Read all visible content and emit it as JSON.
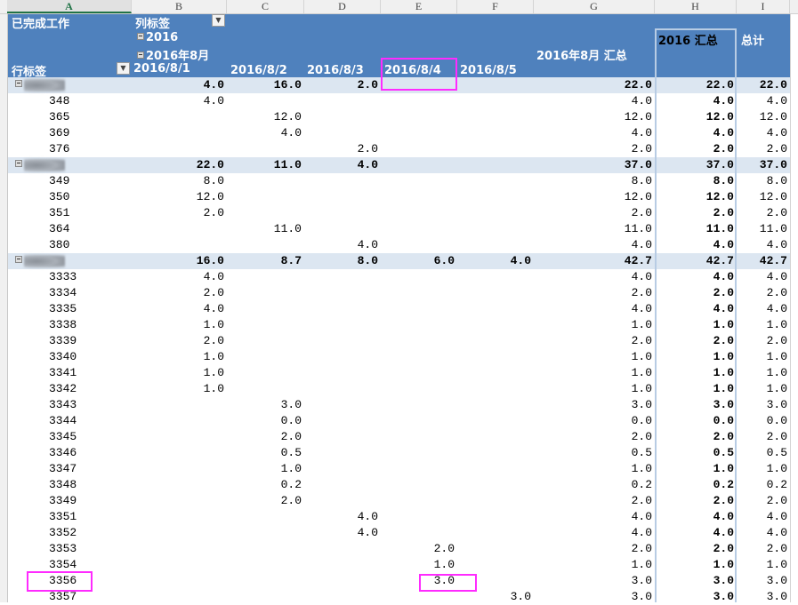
{
  "column_headers": [
    "A",
    "B",
    "C",
    "D",
    "E",
    "F",
    "G",
    "H",
    "I"
  ],
  "selected_column": "A",
  "pivot": {
    "value_field": "已完成工作",
    "column_labels": "列标签",
    "row_labels": "行标签",
    "year": "2016",
    "month": "2016年8月",
    "dates": [
      "2016/8/1",
      "2016/8/2",
      "2016/8/3",
      "2016/8/4",
      "2016/8/5"
    ],
    "month_total": "2016年8月 汇总",
    "year_total": "2016 汇总",
    "grand_total": "总计"
  },
  "colors": {
    "header_bg": "#4F81BD",
    "group_row_bg": "#DCE6F1",
    "highlight_border": "#FF2BFF",
    "selection_border": "#B8CCE4"
  },
  "rows": [
    {
      "type": "group",
      "label": "",
      "values": [
        "4.0",
        "16.0",
        "2.0",
        "",
        "",
        "22.0",
        "22.0",
        "22.0"
      ]
    },
    {
      "type": "item",
      "label": "348",
      "values": [
        "4.0",
        "",
        "",
        "",
        "",
        "4.0",
        "4.0",
        "4.0"
      ]
    },
    {
      "type": "item",
      "label": "365",
      "values": [
        "",
        "12.0",
        "",
        "",
        "",
        "12.0",
        "12.0",
        "12.0"
      ]
    },
    {
      "type": "item",
      "label": "369",
      "values": [
        "",
        "4.0",
        "",
        "",
        "",
        "4.0",
        "4.0",
        "4.0"
      ]
    },
    {
      "type": "item",
      "label": "376",
      "values": [
        "",
        "",
        "2.0",
        "",
        "",
        "2.0",
        "2.0",
        "2.0"
      ]
    },
    {
      "type": "group",
      "label": "",
      "values": [
        "22.0",
        "11.0",
        "4.0",
        "",
        "",
        "37.0",
        "37.0",
        "37.0"
      ]
    },
    {
      "type": "item",
      "label": "349",
      "values": [
        "8.0",
        "",
        "",
        "",
        "",
        "8.0",
        "8.0",
        "8.0"
      ]
    },
    {
      "type": "item",
      "label": "350",
      "values": [
        "12.0",
        "",
        "",
        "",
        "",
        "12.0",
        "12.0",
        "12.0"
      ]
    },
    {
      "type": "item",
      "label": "351",
      "values": [
        "2.0",
        "",
        "",
        "",
        "",
        "2.0",
        "2.0",
        "2.0"
      ]
    },
    {
      "type": "item",
      "label": "364",
      "values": [
        "",
        "11.0",
        "",
        "",
        "",
        "11.0",
        "11.0",
        "11.0"
      ]
    },
    {
      "type": "item",
      "label": "380",
      "values": [
        "",
        "",
        "4.0",
        "",
        "",
        "4.0",
        "4.0",
        "4.0"
      ]
    },
    {
      "type": "group",
      "label": "",
      "values": [
        "16.0",
        "8.7",
        "8.0",
        "6.0",
        "4.0",
        "42.7",
        "42.7",
        "42.7"
      ]
    },
    {
      "type": "item",
      "label": "3333",
      "values": [
        "4.0",
        "",
        "",
        "",
        "",
        "4.0",
        "4.0",
        "4.0"
      ]
    },
    {
      "type": "item",
      "label": "3334",
      "values": [
        "2.0",
        "",
        "",
        "",
        "",
        "2.0",
        "2.0",
        "2.0"
      ]
    },
    {
      "type": "item",
      "label": "3335",
      "values": [
        "4.0",
        "",
        "",
        "",
        "",
        "4.0",
        "4.0",
        "4.0"
      ]
    },
    {
      "type": "item",
      "label": "3338",
      "values": [
        "1.0",
        "",
        "",
        "",
        "",
        "1.0",
        "1.0",
        "1.0"
      ]
    },
    {
      "type": "item",
      "label": "3339",
      "values": [
        "2.0",
        "",
        "",
        "",
        "",
        "2.0",
        "2.0",
        "2.0"
      ]
    },
    {
      "type": "item",
      "label": "3340",
      "values": [
        "1.0",
        "",
        "",
        "",
        "",
        "1.0",
        "1.0",
        "1.0"
      ]
    },
    {
      "type": "item",
      "label": "3341",
      "values": [
        "1.0",
        "",
        "",
        "",
        "",
        "1.0",
        "1.0",
        "1.0"
      ]
    },
    {
      "type": "item",
      "label": "3342",
      "values": [
        "1.0",
        "",
        "",
        "",
        "",
        "1.0",
        "1.0",
        "1.0"
      ]
    },
    {
      "type": "item",
      "label": "3343",
      "values": [
        "",
        "3.0",
        "",
        "",
        "",
        "3.0",
        "3.0",
        "3.0"
      ]
    },
    {
      "type": "item",
      "label": "3344",
      "values": [
        "",
        "0.0",
        "",
        "",
        "",
        "0.0",
        "0.0",
        "0.0"
      ]
    },
    {
      "type": "item",
      "label": "3345",
      "values": [
        "",
        "2.0",
        "",
        "",
        "",
        "2.0",
        "2.0",
        "2.0"
      ]
    },
    {
      "type": "item",
      "label": "3346",
      "values": [
        "",
        "0.5",
        "",
        "",
        "",
        "0.5",
        "0.5",
        "0.5"
      ]
    },
    {
      "type": "item",
      "label": "3347",
      "values": [
        "",
        "1.0",
        "",
        "",
        "",
        "1.0",
        "1.0",
        "1.0"
      ]
    },
    {
      "type": "item",
      "label": "3348",
      "values": [
        "",
        "0.2",
        "",
        "",
        "",
        "0.2",
        "0.2",
        "0.2"
      ]
    },
    {
      "type": "item",
      "label": "3349",
      "values": [
        "",
        "2.0",
        "",
        "",
        "",
        "2.0",
        "2.0",
        "2.0"
      ]
    },
    {
      "type": "item",
      "label": "3351",
      "values": [
        "",
        "",
        "4.0",
        "",
        "",
        "4.0",
        "4.0",
        "4.0"
      ]
    },
    {
      "type": "item",
      "label": "3352",
      "values": [
        "",
        "",
        "4.0",
        "",
        "",
        "4.0",
        "4.0",
        "4.0"
      ]
    },
    {
      "type": "item",
      "label": "3353",
      "values": [
        "",
        "",
        "",
        "2.0",
        "",
        "2.0",
        "2.0",
        "2.0"
      ]
    },
    {
      "type": "item",
      "label": "3354",
      "values": [
        "",
        "",
        "",
        "1.0",
        "",
        "1.0",
        "1.0",
        "1.0"
      ]
    },
    {
      "type": "item",
      "label": "3356",
      "values": [
        "",
        "",
        "",
        "3.0",
        "",
        "3.0",
        "3.0",
        "3.0"
      ]
    },
    {
      "type": "item",
      "label": "3357",
      "values": [
        "",
        "",
        "",
        "",
        "3.0",
        "3.0",
        "3.0",
        "3.0"
      ]
    }
  ]
}
